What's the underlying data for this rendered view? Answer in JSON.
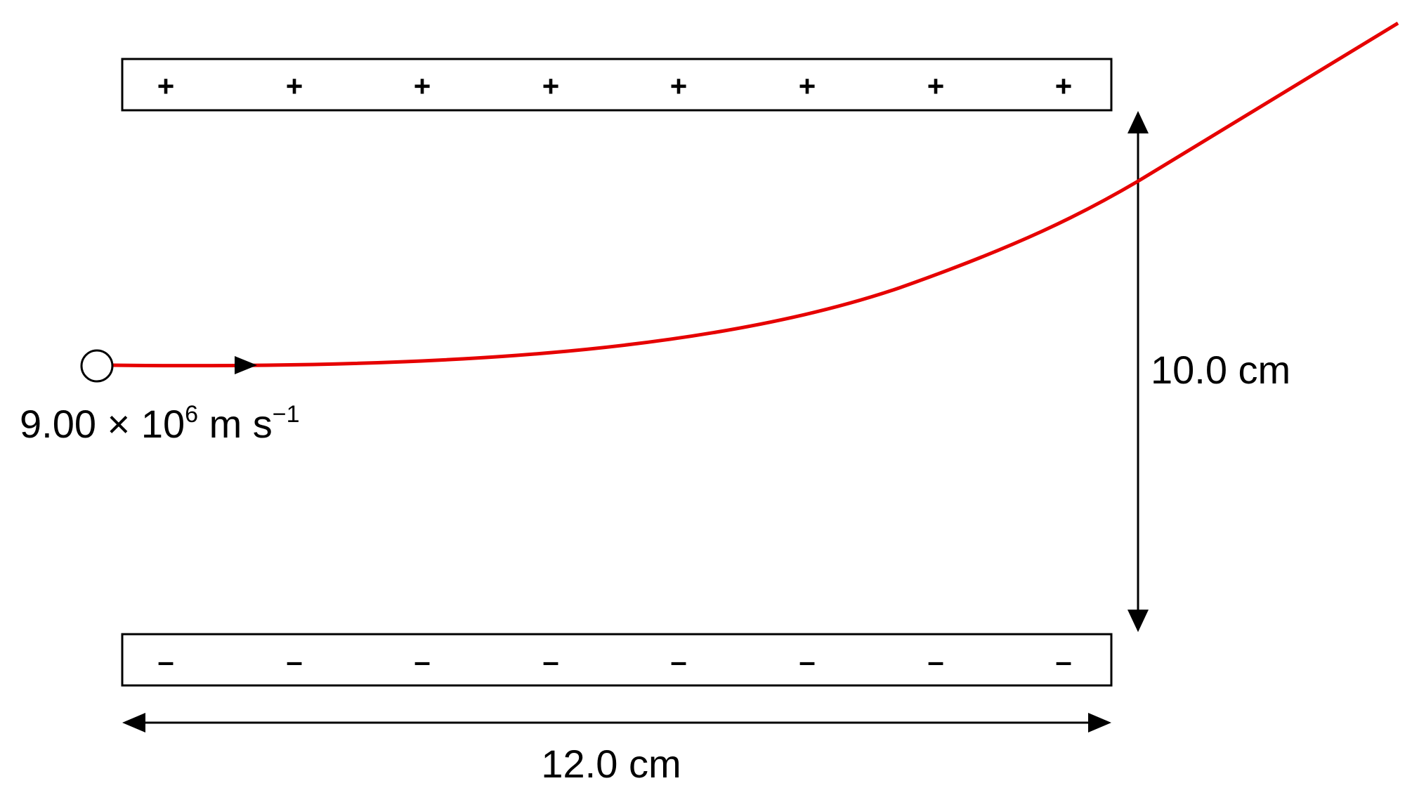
{
  "top_plate": {
    "symbols": [
      "+",
      "+",
      "+",
      "+",
      "+",
      "+",
      "+",
      "+"
    ]
  },
  "bottom_plate": {
    "symbols": [
      "–",
      "–",
      "–",
      "–",
      "–",
      "–",
      "–",
      "–"
    ]
  },
  "velocity_label": {
    "prefix": "9.00 × 10",
    "exponent": "6",
    "unit": " m s",
    "unit_exponent": "−1"
  },
  "separation_label": "10.0 cm",
  "length_label": "12.0 cm",
  "colors": {
    "trajectory": "#e60000",
    "lines": "#000000"
  }
}
